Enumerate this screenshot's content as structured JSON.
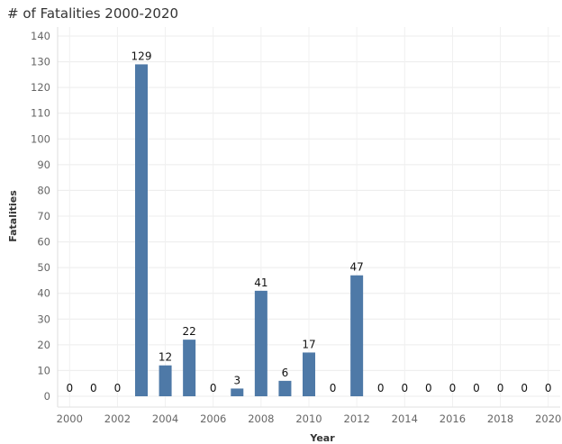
{
  "chart_data": {
    "type": "bar",
    "title": "# of Fatalities 2000-2020",
    "xlabel": "Year",
    "ylabel": "Fatalities",
    "x": [
      2000,
      2001,
      2002,
      2003,
      2004,
      2005,
      2006,
      2007,
      2008,
      2009,
      2010,
      2011,
      2012,
      2013,
      2014,
      2015,
      2016,
      2017,
      2018,
      2019,
      2020
    ],
    "values": [
      0,
      0,
      0,
      129,
      12,
      22,
      0,
      3,
      41,
      6,
      17,
      0,
      47,
      0,
      0,
      0,
      0,
      0,
      0,
      0,
      0
    ],
    "x_tick_labels": [
      "2000",
      "2002",
      "2004",
      "2006",
      "2008",
      "2010",
      "2012",
      "2014",
      "2016",
      "2018",
      "2020"
    ],
    "y_ticks": [
      0,
      10,
      20,
      30,
      40,
      50,
      60,
      70,
      80,
      90,
      100,
      110,
      120,
      130,
      140
    ],
    "ylim": [
      0,
      140
    ],
    "grid": true,
    "data_labels": true,
    "bar_color": "#4e79a7"
  }
}
